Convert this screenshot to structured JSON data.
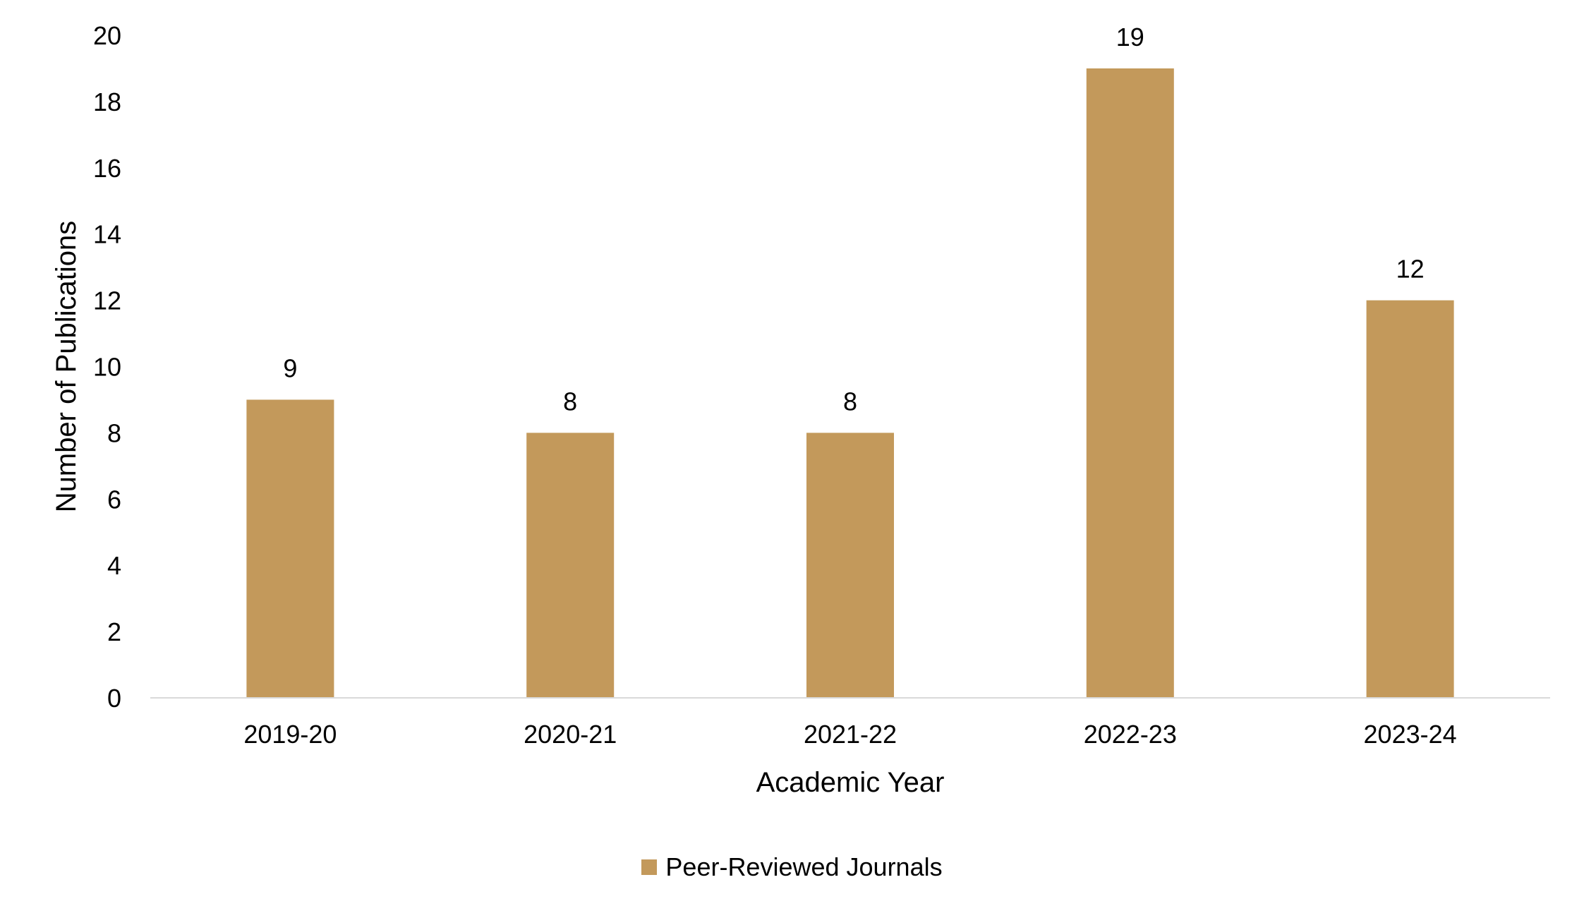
{
  "chart_data": {
    "type": "bar",
    "categories": [
      "2019-20",
      "2020-21",
      "2021-22",
      "2022-23",
      "2023-24"
    ],
    "series": [
      {
        "name": "Peer-Reviewed Journals",
        "values": [
          9,
          8,
          8,
          19,
          12
        ],
        "color": "#C3995B"
      }
    ],
    "data_labels": [
      "9",
      "8",
      "8",
      "19",
      "12"
    ],
    "xlabel": "Academic Year",
    "ylabel": "Number of Publications",
    "ylim": [
      0,
      20
    ],
    "yticks": [
      "0",
      "2",
      "4",
      "6",
      "8",
      "10",
      "12",
      "14",
      "16",
      "18",
      "20"
    ],
    "grid": false,
    "legend_position": "bottom-center",
    "axis_color": "#D9D9D9"
  }
}
